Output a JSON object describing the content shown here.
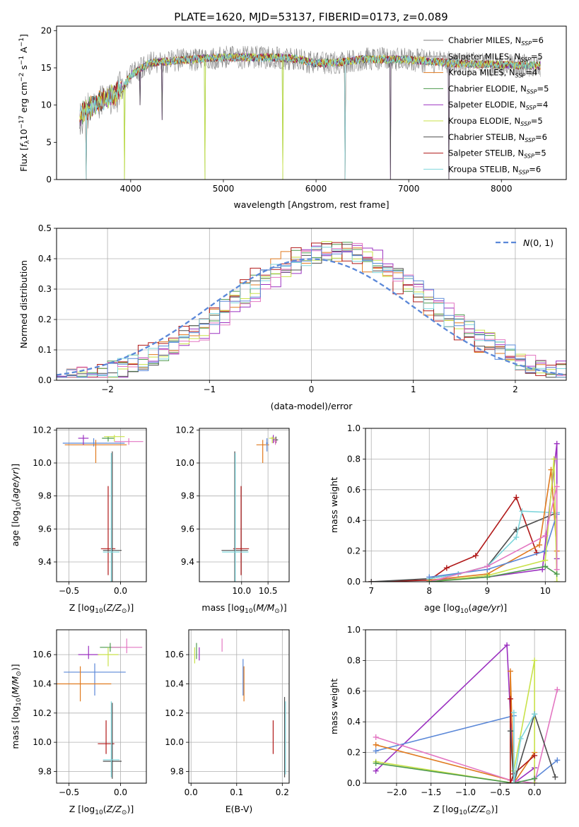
{
  "title": "PLATE=1620, MJD=53137, FIBERID=0173, z=0.089",
  "series_styles": [
    {
      "name": "Chabrier MILES",
      "nssp": "6",
      "color": "#808080"
    },
    {
      "name": "Salpeter MILES",
      "nssp": "5",
      "color": "#9a9a9a"
    },
    {
      "name": "Kroupa MILES",
      "nssp": "4",
      "color": "#e07a1f"
    },
    {
      "name": "Chabrier ELODIE",
      "nssp": "5",
      "color": "#4e9a4e"
    },
    {
      "name": "Salpeter ELODIE",
      "nssp": "4",
      "color": "#9b30c0"
    },
    {
      "name": "Kroupa ELODIE",
      "nssp": "5",
      "color": "#c9e24a"
    },
    {
      "name": "Chabrier STELIB",
      "nssp": "6",
      "color": "#4d4d4d"
    },
    {
      "name": "Salpeter STELIB",
      "nssp": "5",
      "color": "#b01818"
    },
    {
      "name": "Kroupa STELIB",
      "nssp": "6",
      "color": "#7fd6dc"
    }
  ],
  "chart_data": [
    {
      "id": "spectrum",
      "type": "line",
      "xlabel": "wavelength [Angstrom, rest frame]",
      "ylabel": "Flux [f_λ 10^-17 erg cm^-2 s^-1 A^-1]",
      "xlim": [
        3200,
        8700
      ],
      "ylim": [
        0,
        20.6
      ],
      "xticks": [
        4000,
        5000,
        6000,
        7000,
        8000
      ],
      "yticks": [
        0,
        5,
        10,
        15,
        20
      ],
      "grid": false,
      "legend": "right",
      "x_range": [
        3450,
        8420
      ],
      "continuum_knots": [
        [
          3450,
          8.5
        ],
        [
          3600,
          10
        ],
        [
          3900,
          12
        ],
        [
          4000,
          14
        ],
        [
          4200,
          15.6
        ],
        [
          4500,
          16
        ],
        [
          5000,
          16.4
        ],
        [
          5500,
          16.4
        ],
        [
          5800,
          16.2
        ],
        [
          6000,
          15.6
        ],
        [
          6300,
          15.8
        ],
        [
          6500,
          16.2
        ],
        [
          7000,
          16.1
        ],
        [
          7500,
          15.6
        ],
        [
          8000,
          15.4
        ],
        [
          8420,
          15.3
        ]
      ],
      "dips": [
        [
          3520,
          0
        ],
        [
          3930,
          0
        ],
        [
          4100,
          10
        ],
        [
          4340,
          8
        ],
        [
          4800,
          0
        ],
        [
          5640,
          0
        ],
        [
          6310,
          0
        ],
        [
          6800,
          0
        ],
        [
          7430,
          0
        ]
      ]
    },
    {
      "id": "residuals",
      "type": "histogram",
      "xlabel": "(data-model)/error",
      "ylabel": "Normed distribution",
      "xlim": [
        -2.5,
        2.5
      ],
      "ylim": [
        0,
        0.5
      ],
      "xticks": [
        -2,
        -1,
        0,
        1,
        2
      ],
      "xticklabels": [
        "−2",
        "−1",
        "0",
        "1",
        "2"
      ],
      "yticks": [
        0,
        0.1,
        0.2,
        0.3,
        0.4,
        0.5
      ],
      "yticklabels": [
        "0.0",
        "0.1",
        "0.2",
        "0.3",
        "0.4",
        "0.5"
      ],
      "grid": true,
      "legend": "top-right",
      "legend_label": "N(0,1)",
      "reference_color": "#5b88d8",
      "bin_width": 0.1
    },
    {
      "id": "age-vs-z",
      "type": "errorbar",
      "xlabel": "Z [log10(Z/Z⊙)]",
      "ylabel": "age [log10(age/yr)]",
      "xlim": [
        -0.62,
        0.25
      ],
      "ylim": [
        9.28,
        10.21
      ],
      "xticks": [
        -0.5,
        0.0
      ],
      "xticklabels": [
        "−0.5",
        "0.0"
      ],
      "yticks": [
        9.4,
        9.6,
        9.8,
        10.0,
        10.2
      ],
      "yticklabels": [
        "9.4",
        "9.6",
        "9.8",
        "10.0",
        "10.2"
      ],
      "grid": true,
      "points": [
        {
          "color": "#b01818",
          "x": -0.12,
          "y": 9.48,
          "xerr": 0.07,
          "yerr": [
            0.16,
            0.38
          ]
        },
        {
          "color": "#4d4d4d",
          "x": -0.08,
          "y": 9.47,
          "xerr": 0.09,
          "yerr": [
            0.2,
            0.6
          ]
        },
        {
          "color": "#7fd6dc",
          "x": -0.09,
          "y": 9.46,
          "xerr": 0.08,
          "yerr": [
            0.2,
            0.6
          ]
        },
        {
          "color": "#5b88d8",
          "x": -0.26,
          "y": 10.12,
          "xerr": 0.3,
          "yerr": [
            0.02,
            0.03
          ]
        },
        {
          "color": "#e07a1f",
          "x": -0.24,
          "y": 10.11,
          "xerr": 0.3,
          "yerr": [
            0.11,
            0.03
          ]
        },
        {
          "color": "#9b30c0",
          "x": -0.36,
          "y": 10.15,
          "xerr": 0.05,
          "yerr": [
            0.04,
            0.02
          ]
        },
        {
          "color": "#4e9a4e",
          "x": -0.12,
          "y": 10.15,
          "xerr": 0.06,
          "yerr": [
            0.02,
            0.01
          ]
        },
        {
          "color": "#c9e24a",
          "x": -0.06,
          "y": 10.16,
          "xerr": 0.1,
          "yerr": [
            0.03,
            0.01
          ]
        },
        {
          "color": "#e377c2",
          "x": 0.08,
          "y": 10.13,
          "xerr": 0.14,
          "yerr": [
            0.02,
            0.02
          ]
        }
      ]
    },
    {
      "id": "age-vs-mass",
      "type": "errorbar",
      "xlabel": "mass [log10(M/M⊙)]",
      "ylabel": "",
      "xlim": [
        9.2,
        10.9
      ],
      "ylim": [
        9.28,
        10.21
      ],
      "xticks": [
        10.0,
        10.5
      ],
      "xticklabels": [
        "10.0",
        "10.5"
      ],
      "yticks": [
        9.4,
        9.6,
        9.8,
        10.0,
        10.2
      ],
      "yticklabels": [
        "9.4",
        "9.6",
        "9.8",
        "10.0",
        "10.2"
      ],
      "grid": true,
      "points": [
        {
          "color": "#b01818",
          "x": 9.99,
          "y": 9.48,
          "xerr": 0.15,
          "yerr": [
            0.16,
            0.38
          ]
        },
        {
          "color": "#4d4d4d",
          "x": 9.87,
          "y": 9.47,
          "xerr": 0.25,
          "yerr": [
            0.2,
            0.6
          ]
        },
        {
          "color": "#7fd6dc",
          "x": 9.88,
          "y": 9.46,
          "xerr": 0.25,
          "yerr": [
            0.2,
            0.6
          ]
        },
        {
          "color": "#e07a1f",
          "x": 10.4,
          "y": 10.11,
          "xerr": 0.12,
          "yerr": [
            0.11,
            0.03
          ]
        },
        {
          "color": "#5b88d8",
          "x": 10.48,
          "y": 10.12,
          "xerr": 0.02,
          "yerr": [
            0.05,
            0.03
          ]
        },
        {
          "color": "#9b30c0",
          "x": 10.6,
          "y": 10.15,
          "xerr": 0.04,
          "yerr": [
            0.03,
            0.02
          ]
        },
        {
          "color": "#c9e24a",
          "x": 10.58,
          "y": 10.15,
          "xerr": 0.06,
          "yerr": [
            0.03,
            0.01
          ]
        },
        {
          "color": "#4d4d4d",
          "x": 10.65,
          "y": 10.14,
          "xerr": 0.04,
          "yerr": [
            0.02,
            0.02
          ]
        },
        {
          "color": "#e377c2",
          "x": 10.64,
          "y": 10.13,
          "xerr": 0.03,
          "yerr": [
            0.02,
            0.02
          ]
        }
      ]
    },
    {
      "id": "mass-weight-vs-age",
      "type": "line",
      "xlabel": "age [log10(age/yr)]",
      "ylabel": "mass weight",
      "xlim": [
        6.9,
        10.35
      ],
      "ylim": [
        0,
        1.0
      ],
      "xticks": [
        7,
        8,
        9,
        10
      ],
      "xticklabels": [
        "7",
        "8",
        "9",
        "10"
      ],
      "yticks": [
        0,
        0.2,
        0.4,
        0.6,
        0.8,
        1.0
      ],
      "yticklabels": [
        "0.0",
        "0.2",
        "0.4",
        "0.6",
        "0.8",
        "1.0"
      ],
      "grid": true,
      "series": [
        {
          "color": "#b01818",
          "x": [
            7.0,
            8.0,
            8.3,
            8.8,
            9.5,
            9.85
          ],
          "y": [
            0.0,
            0.01,
            0.09,
            0.17,
            0.55,
            0.19
          ]
        },
        {
          "color": "#4d4d4d",
          "x": [
            7.0,
            8.0,
            8.5,
            9.0,
            9.5,
            10.2
          ],
          "y": [
            0.0,
            0.02,
            0.05,
            0.1,
            0.34,
            0.45
          ]
        },
        {
          "color": "#7fd6dc",
          "x": [
            8.0,
            8.5,
            9.0,
            9.5,
            9.6,
            10.2
          ],
          "y": [
            0.02,
            0.05,
            0.1,
            0.29,
            0.46,
            0.45
          ]
        },
        {
          "color": "#9b30c0",
          "x": [
            8.0,
            9.0,
            9.95,
            10.2,
            10.2
          ],
          "y": [
            0.01,
            0.03,
            0.08,
            0.9,
            0.15
          ]
        },
        {
          "color": "#e07a1f",
          "x": [
            8.0,
            9.0,
            9.9,
            10.1,
            10.2
          ],
          "y": [
            0.01,
            0.05,
            0.24,
            0.73,
            0.2
          ]
        },
        {
          "color": "#5b88d8",
          "x": [
            8.0,
            9.0,
            10.0,
            10.2
          ],
          "y": [
            0.03,
            0.08,
            0.2,
            0.44
          ]
        },
        {
          "color": "#c9e24a",
          "x": [
            8.0,
            9.0,
            10.0,
            10.15,
            10.2
          ],
          "y": [
            0.0,
            0.04,
            0.14,
            0.8,
            0.0
          ]
        },
        {
          "color": "#e377c2",
          "x": [
            8.0,
            9.0,
            10.0,
            10.2,
            10.2
          ],
          "y": [
            0.0,
            0.1,
            0.3,
            0.62,
            0.08
          ]
        },
        {
          "color": "#4e9a4e",
          "x": [
            8.0,
            9.0,
            10.0,
            10.2
          ],
          "y": [
            0.0,
            0.03,
            0.1,
            0.05
          ]
        }
      ]
    },
    {
      "id": "mass-vs-z",
      "type": "errorbar",
      "xlabel": "Z [log10(Z/Z⊙)]",
      "ylabel": "mass [log10(M/M⊙)]",
      "xlim": [
        -0.62,
        0.25
      ],
      "ylim": [
        9.72,
        10.77
      ],
      "xticks": [
        -0.5,
        0.0
      ],
      "xticklabels": [
        "−0.5",
        "0.0"
      ],
      "yticks": [
        9.8,
        10.0,
        10.2,
        10.4,
        10.6
      ],
      "yticklabels": [
        "9.8",
        "10.0",
        "10.2",
        "10.4",
        "10.6"
      ],
      "grid": true,
      "points": [
        {
          "color": "#5b88d8",
          "x": -0.25,
          "y": 10.48,
          "xerr": 0.3,
          "yerr": [
            0.16,
            0.06
          ]
        },
        {
          "color": "#e07a1f",
          "x": -0.39,
          "y": 10.4,
          "xerr": 0.3,
          "yerr": [
            0.12,
            0.12
          ]
        },
        {
          "color": "#9b30c0",
          "x": -0.31,
          "y": 10.6,
          "xerr": 0.1,
          "yerr": [
            0.03,
            0.06
          ]
        },
        {
          "color": "#4e9a4e",
          "x": -0.1,
          "y": 10.65,
          "xerr": 0.1,
          "yerr": [
            0.03,
            0.03
          ]
        },
        {
          "color": "#c9e24a",
          "x": -0.12,
          "y": 10.6,
          "xerr": 0.1,
          "yerr": [
            0.08,
            0.05
          ]
        },
        {
          "color": "#e377c2",
          "x": 0.06,
          "y": 10.65,
          "xerr": 0.15,
          "yerr": [
            0.04,
            0.06
          ]
        },
        {
          "color": "#b01818",
          "x": -0.14,
          "y": 9.99,
          "xerr": 0.08,
          "yerr": [
            0.07,
            0.16
          ]
        },
        {
          "color": "#4d4d4d",
          "x": -0.08,
          "y": 9.87,
          "xerr": 0.09,
          "yerr": [
            0.12,
            0.4
          ]
        },
        {
          "color": "#7fd6dc",
          "x": -0.09,
          "y": 9.88,
          "xerr": 0.08,
          "yerr": [
            0.12,
            0.4
          ]
        }
      ]
    },
    {
      "id": "mass-vs-ebv",
      "type": "errorbar",
      "xlabel": "E(B-V)",
      "ylabel": "",
      "xlim": [
        -0.005,
        0.215
      ],
      "ylim": [
        9.72,
        10.77
      ],
      "xticks": [
        0.0,
        0.1,
        0.2
      ],
      "xticklabels": [
        "0.0",
        "0.1",
        "0.2"
      ],
      "yticks": [
        9.8,
        10.0,
        10.2,
        10.4,
        10.6
      ],
      "yticklabels": [
        "9.8",
        "10.0",
        "10.2",
        "10.4",
        "10.6"
      ],
      "grid": true,
      "points": [
        {
          "color": "#c9e24a",
          "x": 0.008,
          "y": 10.6,
          "xerr": 0,
          "yerr": [
            0.06,
            0.05
          ]
        },
        {
          "color": "#4e9a4e",
          "x": 0.012,
          "y": 10.62,
          "xerr": 0,
          "yerr": [
            0.05,
            0.06
          ]
        },
        {
          "color": "#9b30c0",
          "x": 0.018,
          "y": 10.6,
          "xerr": 0,
          "yerr": [
            0.04,
            0.05
          ]
        },
        {
          "color": "#e377c2",
          "x": 0.068,
          "y": 10.65,
          "xerr": 0,
          "yerr": [
            0.03,
            0.06
          ]
        },
        {
          "color": "#5b88d8",
          "x": 0.114,
          "y": 10.48,
          "xerr": 0,
          "yerr": [
            0.16,
            0.09
          ]
        },
        {
          "color": "#e07a1f",
          "x": 0.116,
          "y": 10.4,
          "xerr": 0,
          "yerr": [
            0.12,
            0.12
          ]
        },
        {
          "color": "#b01818",
          "x": 0.18,
          "y": 9.99,
          "xerr": 0,
          "yerr": [
            0.07,
            0.16
          ]
        },
        {
          "color": "#4d4d4d",
          "x": 0.205,
          "y": 10.0,
          "xerr": 0,
          "yerr": [
            0.24,
            0.31
          ]
        },
        {
          "color": "#7fd6dc",
          "x": 0.207,
          "y": 9.98,
          "xerr": 0,
          "yerr": [
            0.2,
            0.3
          ]
        }
      ]
    },
    {
      "id": "mass-weight-vs-z",
      "type": "line",
      "xlabel": "Z [log10(Z/Z⊙)]",
      "ylabel": "mass weight",
      "xlim": [
        -2.45,
        0.45
      ],
      "ylim": [
        0,
        1.0
      ],
      "xticks": [
        -2.0,
        -1.5,
        -1.0,
        -0.5,
        0.0
      ],
      "xticklabels": [
        "−2.0",
        "−1.5",
        "−1.0",
        "−0.5",
        "0.0"
      ],
      "yticks": [
        0,
        0.2,
        0.4,
        0.6,
        0.8,
        1.0
      ],
      "yticklabels": [
        "0.0",
        "0.2",
        "0.4",
        "0.6",
        "0.8",
        "1.0"
      ],
      "grid": true,
      "series": [
        {
          "color": "#9b30c0",
          "x": [
            -2.3,
            -0.4,
            -0.3,
            0.0,
            0.0
          ],
          "y": [
            0.08,
            0.9,
            0.0,
            0.1,
            0.0
          ]
        },
        {
          "color": "#5b88d8",
          "x": [
            -2.3,
            -0.3,
            -0.3,
            0.0,
            0.33
          ],
          "y": [
            0.21,
            0.44,
            0.0,
            0.03,
            0.15
          ]
        },
        {
          "color": "#e07a1f",
          "x": [
            -2.3,
            -0.35,
            -0.35,
            -0.3,
            0.0
          ],
          "y": [
            0.25,
            0.02,
            0.73,
            0.0,
            0.2
          ]
        },
        {
          "color": "#e377c2",
          "x": [
            -2.3,
            -0.35,
            0.0,
            0.33
          ],
          "y": [
            0.3,
            0.02,
            0.0,
            0.61
          ]
        },
        {
          "color": "#c9e24a",
          "x": [
            -2.3,
            -0.3,
            -0.3,
            0.0,
            0.0
          ],
          "y": [
            0.14,
            0.0,
            0.08,
            0.8,
            0.0
          ]
        },
        {
          "color": "#4e9a4e",
          "x": [
            -2.3,
            -0.3,
            0.0
          ],
          "y": [
            0.13,
            0.0,
            0.03
          ]
        },
        {
          "color": "#b01818",
          "x": [
            -0.35,
            -0.35,
            -0.3,
            0.0
          ],
          "y": [
            0.55,
            0.0,
            0.06,
            0.18
          ]
        },
        {
          "color": "#4d4d4d",
          "x": [
            -0.35,
            -0.3,
            0.0,
            0.3
          ],
          "y": [
            0.34,
            0.0,
            0.45,
            0.04
          ]
        },
        {
          "color": "#7fd6dc",
          "x": [
            -0.3,
            -0.3,
            -0.2,
            0.0
          ],
          "y": [
            0.46,
            0.0,
            0.29,
            0.45
          ]
        }
      ]
    }
  ]
}
